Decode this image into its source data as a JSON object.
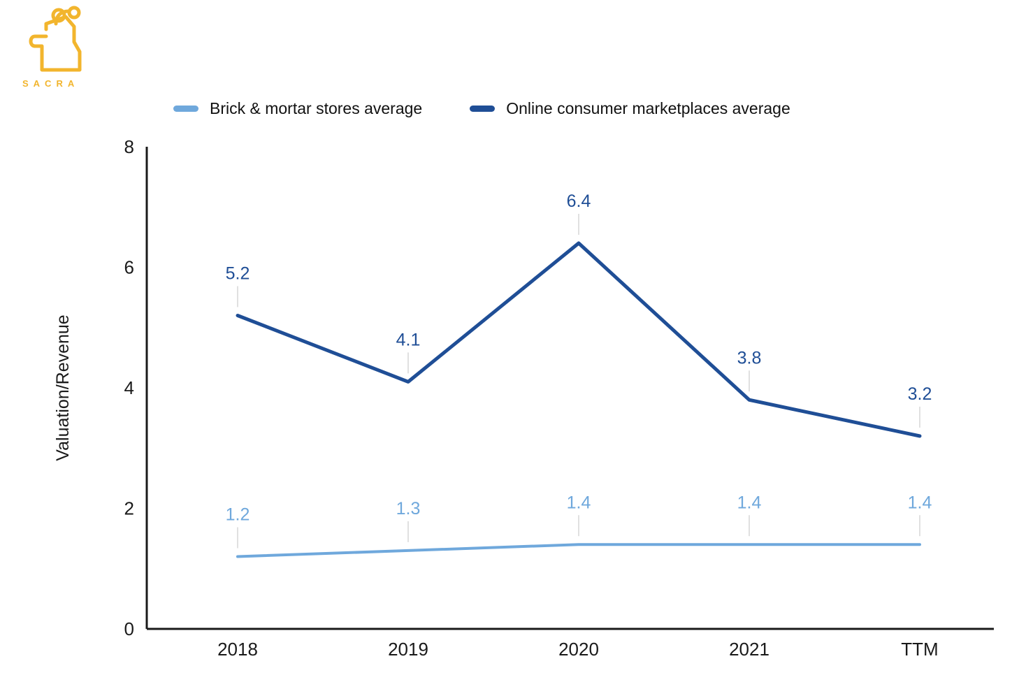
{
  "brand": {
    "name": "SACRA"
  },
  "colors": {
    "brand_yellow": "#f2b52d",
    "axis": "#1a1a1a",
    "leader_line": "#e0e0e0",
    "series_light_blue": "#6fa8dc",
    "series_dark_blue": "#1f4e96"
  },
  "chart_data": {
    "type": "line",
    "categories": [
      "2018",
      "2019",
      "2020",
      "2021",
      "TTM"
    ],
    "series": [
      {
        "name": "Brick & mortar stores average",
        "color": "#6fa8dc",
        "values": [
          1.2,
          1.3,
          1.4,
          1.4,
          1.4
        ]
      },
      {
        "name": "Online consumer marketplaces average",
        "color": "#1f4e96",
        "values": [
          5.2,
          4.1,
          6.4,
          3.8,
          3.2
        ]
      }
    ],
    "title": "",
    "xlabel": "",
    "ylabel": "Valuation/Revenue",
    "ylim": [
      0,
      8
    ],
    "yticks": [
      0,
      2,
      4,
      6,
      8
    ],
    "grid": false,
    "legend_position": "top",
    "data_labels": true
  }
}
